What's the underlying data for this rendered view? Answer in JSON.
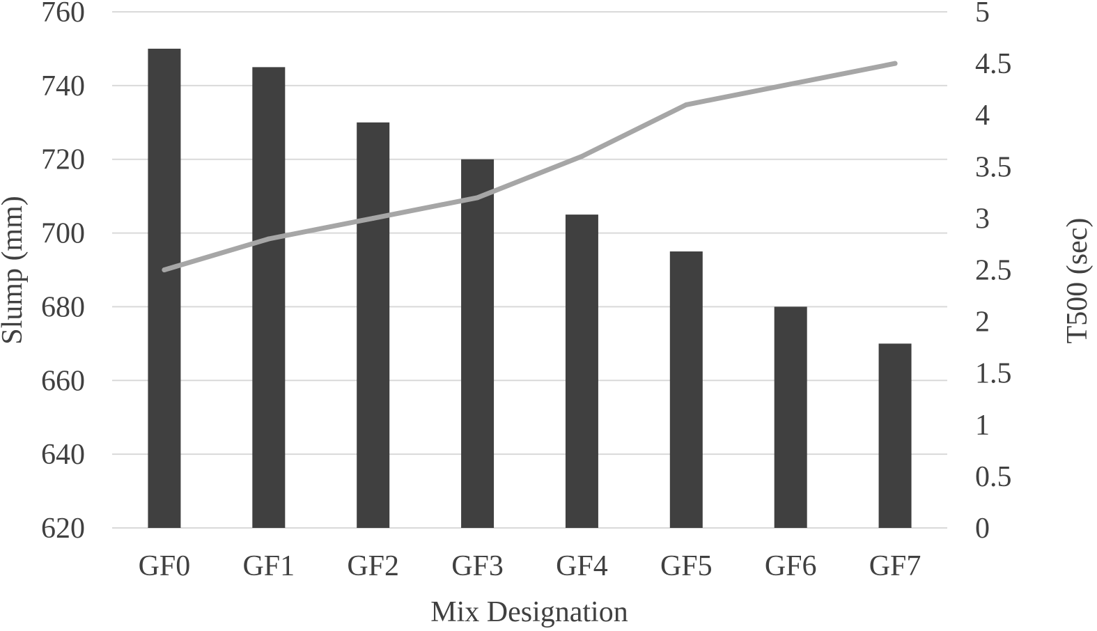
{
  "chart_data": {
    "type": "bar",
    "title": "",
    "categories": [
      "GF0",
      "GF1",
      "GF2",
      "GF3",
      "GF4",
      "GF5",
      "GF6",
      "GF7"
    ],
    "xlabel": "Mix Designation",
    "ylabel": "Slump (mm)",
    "y2label": "T500 (sec)",
    "ylim": [
      620,
      760
    ],
    "y2lim": [
      0,
      5
    ],
    "yticks": [
      "620",
      "640",
      "660",
      "680",
      "700",
      "720",
      "740",
      "760"
    ],
    "y2ticks": [
      "0",
      "0.5",
      "1",
      "1.5",
      "2",
      "2.5",
      "3",
      "3.5",
      "4",
      "4.5",
      "5"
    ],
    "grid": true,
    "series": [
      {
        "type": "bar",
        "axis": "left",
        "color": "#404040",
        "values": [
          750,
          745,
          730,
          720,
          705,
          695,
          680,
          670
        ]
      },
      {
        "type": "line",
        "axis": "right",
        "color": "#a6a6a6",
        "values": [
          2.5,
          2.8,
          3.0,
          3.2,
          3.6,
          4.1,
          4.3,
          4.5
        ]
      }
    ]
  }
}
